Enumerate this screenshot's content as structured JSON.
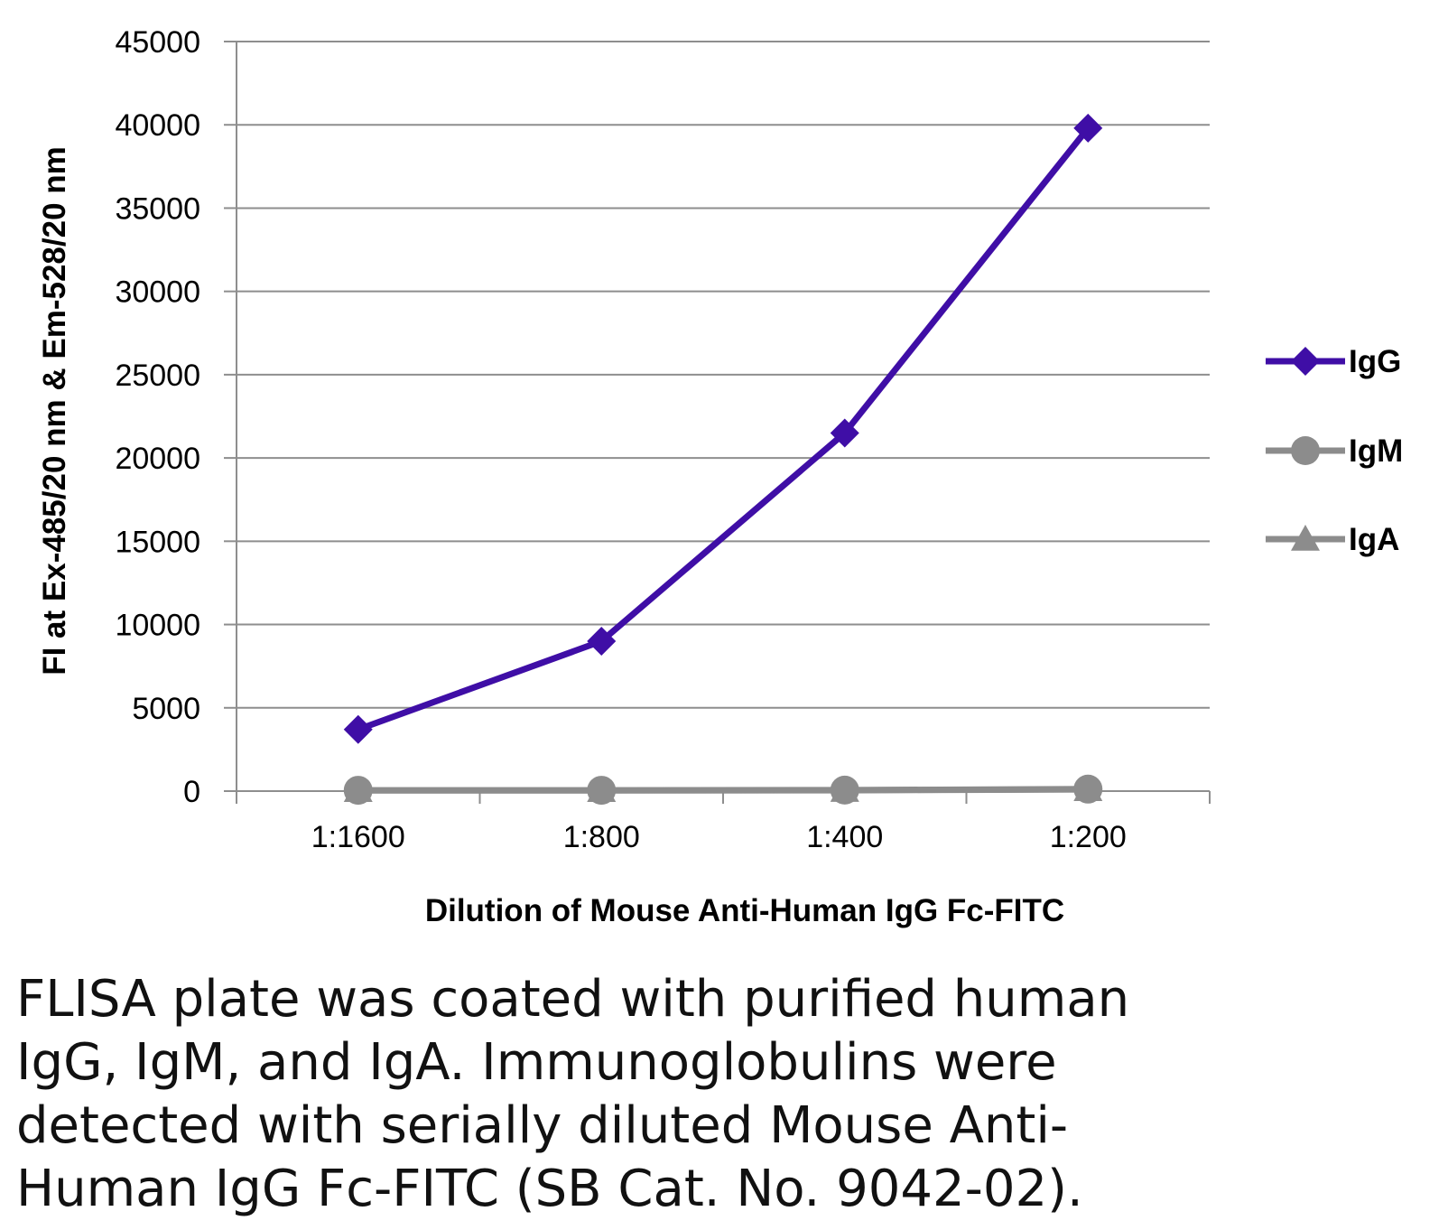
{
  "chart_data": {
    "type": "line",
    "title": "",
    "categories": [
      "1:1600",
      "1:800",
      "1:400",
      "1:200"
    ],
    "xlabel": "Dilution of Mouse Anti-Human IgG Fc-FITC",
    "ylabel": "FI at Ex-485/20 nm & Em-528/20 nm",
    "ylim": [
      0,
      45000
    ],
    "yticks": [
      "0",
      "5000",
      "10000",
      "15000",
      "20000",
      "25000",
      "30000",
      "35000",
      "40000",
      "45000"
    ],
    "grid": true,
    "legend_position": "right",
    "series": [
      {
        "name": "IgG",
        "values": [
          3700,
          9000,
          21500,
          39800
        ],
        "color": "#3f0ea6",
        "marker": "diamond"
      },
      {
        "name": "IgM",
        "values": [
          50,
          50,
          60,
          120
        ],
        "color": "#8c8c8c",
        "marker": "circle"
      },
      {
        "name": "IgA",
        "values": [
          40,
          40,
          50,
          100
        ],
        "color": "#8c8c8c",
        "marker": "triangle"
      }
    ]
  },
  "caption": {
    "lines": [
      "FLISA plate was coated with purified human",
      "IgG, IgM, and IgA.  Immunoglobulins were",
      "detected with serially diluted Mouse Anti-",
      "Human IgG Fc-FITC (SB Cat. No. 9042-02)."
    ]
  }
}
